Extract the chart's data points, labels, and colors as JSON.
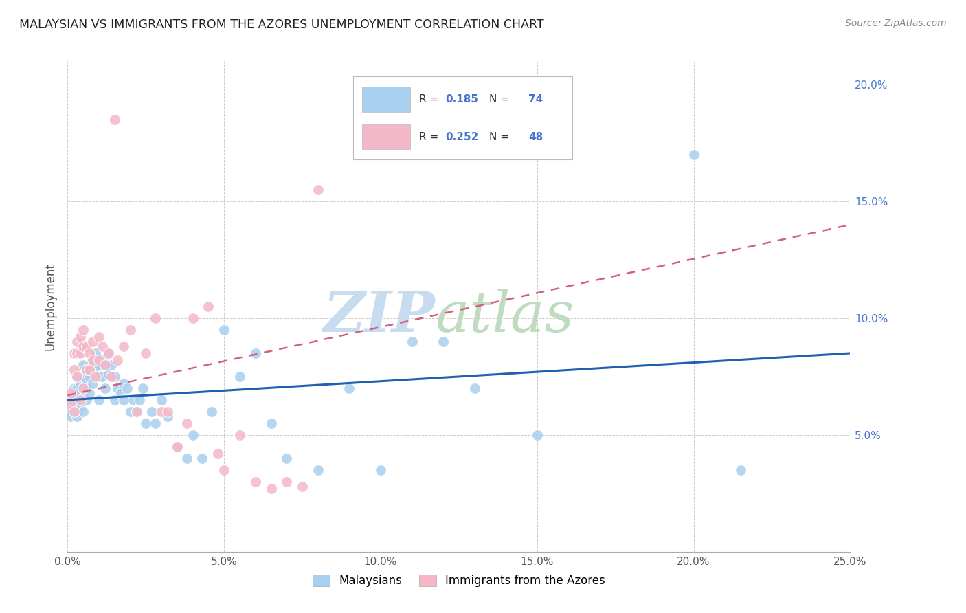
{
  "title": "MALAYSIAN VS IMMIGRANTS FROM THE AZORES UNEMPLOYMENT CORRELATION CHART",
  "source": "Source: ZipAtlas.com",
  "ylabel": "Unemployment",
  "x_min": 0.0,
  "x_max": 0.25,
  "y_min": 0.0,
  "y_max": 0.21,
  "x_ticks": [
    0.0,
    0.05,
    0.1,
    0.15,
    0.2,
    0.25
  ],
  "x_tick_labels": [
    "0.0%",
    "5.0%",
    "10.0%",
    "15.0%",
    "20.0%",
    "25.0%"
  ],
  "y_ticks": [
    0.05,
    0.1,
    0.15,
    0.2
  ],
  "y_tick_labels": [
    "5.0%",
    "10.0%",
    "15.0%",
    "20.0%"
  ],
  "legend_labels": [
    "Malaysians",
    "Immigrants from the Azores"
  ],
  "blue_R": "0.185",
  "blue_N": "74",
  "pink_R": "0.252",
  "pink_N": "48",
  "blue_scatter_color": "#A8CFEE",
  "pink_scatter_color": "#F4B8C8",
  "blue_line_color": "#2060B0",
  "pink_line_color": "#D06080",
  "ytick_color": "#4477CC",
  "grid_color": "#CCCCCC",
  "watermark_zip_color": "#C8DCF0",
  "watermark_atlas_color": "#C0DCC0",
  "blue_line_start_y": 0.065,
  "blue_line_end_y": 0.085,
  "pink_line_start_y": 0.067,
  "pink_line_end_y": 0.14,
  "malaysians_x": [
    0.001,
    0.001,
    0.001,
    0.002,
    0.002,
    0.002,
    0.003,
    0.003,
    0.003,
    0.003,
    0.004,
    0.004,
    0.004,
    0.005,
    0.005,
    0.005,
    0.005,
    0.006,
    0.006,
    0.006,
    0.006,
    0.007,
    0.007,
    0.007,
    0.008,
    0.008,
    0.009,
    0.009,
    0.01,
    0.01,
    0.01,
    0.011,
    0.011,
    0.012,
    0.012,
    0.013,
    0.013,
    0.014,
    0.015,
    0.015,
    0.016,
    0.017,
    0.018,
    0.018,
    0.019,
    0.02,
    0.021,
    0.022,
    0.023,
    0.024,
    0.025,
    0.027,
    0.028,
    0.03,
    0.032,
    0.035,
    0.038,
    0.04,
    0.043,
    0.046,
    0.05,
    0.055,
    0.06,
    0.065,
    0.07,
    0.08,
    0.09,
    0.1,
    0.11,
    0.12,
    0.13,
    0.15,
    0.2,
    0.215
  ],
  "malaysians_y": [
    0.065,
    0.06,
    0.058,
    0.07,
    0.065,
    0.06,
    0.075,
    0.07,
    0.065,
    0.058,
    0.072,
    0.068,
    0.062,
    0.08,
    0.075,
    0.07,
    0.06,
    0.078,
    0.074,
    0.07,
    0.065,
    0.08,
    0.075,
    0.068,
    0.082,
    0.072,
    0.085,
    0.078,
    0.08,
    0.075,
    0.065,
    0.082,
    0.075,
    0.08,
    0.07,
    0.085,
    0.076,
    0.08,
    0.075,
    0.065,
    0.07,
    0.068,
    0.072,
    0.065,
    0.07,
    0.06,
    0.065,
    0.06,
    0.065,
    0.07,
    0.055,
    0.06,
    0.055,
    0.065,
    0.058,
    0.045,
    0.04,
    0.05,
    0.04,
    0.06,
    0.095,
    0.075,
    0.085,
    0.055,
    0.04,
    0.035,
    0.07,
    0.035,
    0.09,
    0.09,
    0.07,
    0.05,
    0.17,
    0.035
  ],
  "azores_x": [
    0.001,
    0.001,
    0.002,
    0.002,
    0.002,
    0.003,
    0.003,
    0.003,
    0.004,
    0.004,
    0.004,
    0.005,
    0.005,
    0.005,
    0.006,
    0.006,
    0.007,
    0.007,
    0.008,
    0.008,
    0.009,
    0.01,
    0.01,
    0.011,
    0.012,
    0.013,
    0.014,
    0.015,
    0.016,
    0.018,
    0.02,
    0.022,
    0.025,
    0.028,
    0.03,
    0.032,
    0.035,
    0.038,
    0.04,
    0.045,
    0.048,
    0.05,
    0.055,
    0.06,
    0.065,
    0.07,
    0.075,
    0.08
  ],
  "azores_y": [
    0.068,
    0.063,
    0.085,
    0.078,
    0.06,
    0.09,
    0.085,
    0.075,
    0.092,
    0.085,
    0.065,
    0.095,
    0.088,
    0.07,
    0.088,
    0.078,
    0.085,
    0.078,
    0.09,
    0.082,
    0.075,
    0.092,
    0.082,
    0.088,
    0.08,
    0.085,
    0.075,
    0.185,
    0.082,
    0.088,
    0.095,
    0.06,
    0.085,
    0.1,
    0.06,
    0.06,
    0.045,
    0.055,
    0.1,
    0.105,
    0.042,
    0.035,
    0.05,
    0.03,
    0.027,
    0.03,
    0.028,
    0.155
  ]
}
